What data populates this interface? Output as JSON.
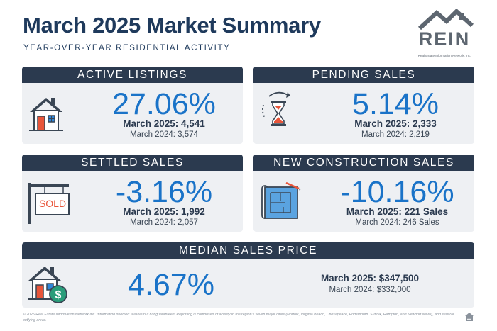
{
  "header": {
    "title": "March 2025 Market Summary",
    "subtitle": "YEAR-OVER-YEAR RESIDENTIAL ACTIVITY"
  },
  "logo": {
    "text": "REIN",
    "tagline": "Real Estate Information Network, Inc."
  },
  "cards": {
    "active_listings": {
      "title": "ACTIVE LISTINGS",
      "percent": "27.06%",
      "current": "March 2025: 4,541",
      "previous": "March 2024: 3,574",
      "icon": "house-icon"
    },
    "pending_sales": {
      "title": "PENDING SALES",
      "percent": "5.14%",
      "current": "March 2025: 2,333",
      "previous": "March 2024: 2,219",
      "icon": "hourglass-icon"
    },
    "settled_sales": {
      "title": "SETTLED SALES",
      "percent": "-3.16%",
      "current": "March 2025: 1,992",
      "previous": "March 2024: 2,057",
      "icon": "sold-sign-icon",
      "sign_text": "SOLD"
    },
    "new_construction": {
      "title": "NEW CONSTRUCTION SALES",
      "percent": "-10.16%",
      "current": "March 2025: 221 Sales",
      "previous": "March 2024: 246 Sales",
      "icon": "blueprint-icon"
    },
    "median_price": {
      "title": "MEDIAN SALES PRICE",
      "percent": "4.67%",
      "current": "March 2025: $347,500",
      "previous": "March 2024: $332,000",
      "icon": "house-dollar-icon"
    }
  },
  "footer": {
    "disclaimer": "© 2025 Real Estate Information Network Inc. Information deemed reliable but not guaranteed. Reporting is comprised of activity in the region's seven major cities (Norfolk, Virginia Beach, Chesapeake, Portsmouth, Suffolk, Hampton, and Newport News), and several outlying areas.",
    "equal_housing_icon": "equal-housing-icon"
  },
  "colors": {
    "navy": "#1f3a5c",
    "header_bar": "#2b3a4f",
    "accent_blue": "#1a73c8",
    "accent_orange": "#e8553a",
    "card_bg": "#eef0f3"
  }
}
